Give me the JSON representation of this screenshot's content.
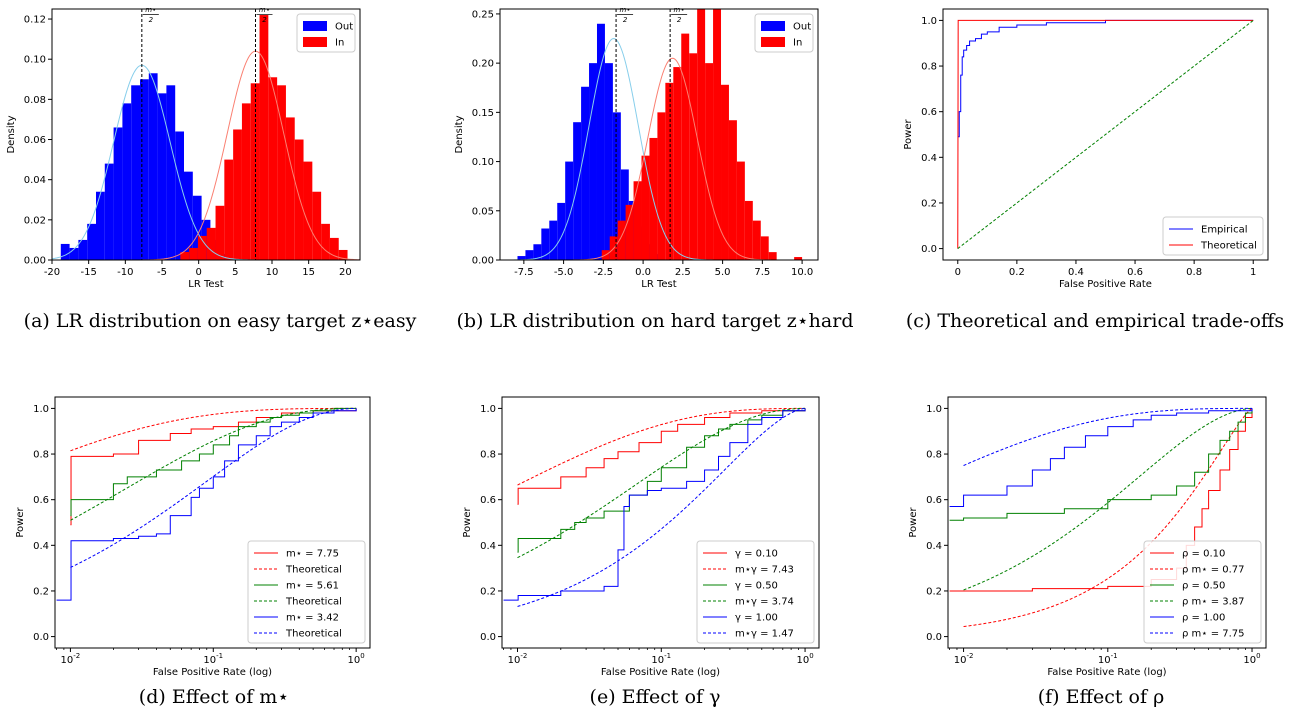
{
  "captions": [
    "(a) LR distribution on easy target z⋆easy",
    "(b) LR distribution on hard target z⋆hard",
    "(c) Theoretical and empirical trade-offs",
    "(d) Effect of m⋆",
    "(e) Effect of γ",
    "(f) Effect of ρ"
  ],
  "chart_data": [
    {
      "id": "a",
      "type": "bar",
      "subtype": "histogram-with-density",
      "xlabel": "LR Test",
      "ylabel": "Density",
      "xlim": [
        -20,
        22
      ],
      "ylim": [
        0,
        0.125
      ],
      "xticks": [
        -20,
        -15,
        -10,
        -5,
        0,
        5,
        10,
        15,
        20
      ],
      "yticks": [
        0.0,
        0.02,
        0.04,
        0.06,
        0.08,
        0.1,
        0.12
      ],
      "ytick_decimals": 2,
      "legend": {
        "position": "top-right",
        "entries": [
          "Out",
          "In"
        ]
      },
      "annotations": [
        {
          "x": -7.75,
          "label": "m⋆/2",
          "side": "right"
        },
        {
          "x": 7.75,
          "label": "m⋆/2",
          "side": "right"
        }
      ],
      "series": [
        {
          "name": "Out",
          "color": "#0000ff",
          "kde_color": "#87ceeb",
          "mean": -7.75,
          "sd": 3.85,
          "kde_peak": 0.097,
          "bin_start": -18.8,
          "bin_width": 1.2,
          "values": [
            0.008,
            0.006,
            0.01,
            0.018,
            0.034,
            0.048,
            0.066,
            0.078,
            0.087,
            0.09,
            0.093,
            0.083,
            0.087,
            0.064,
            0.044,
            0.032,
            0.02,
            0.01,
            0.003
          ]
        },
        {
          "name": "In",
          "color": "#ff0000",
          "kde_color": "#fa8072",
          "mean": 7.75,
          "sd": 3.85,
          "kde_peak": 0.104,
          "bin_start": -2.5,
          "bin_width": 1.2,
          "values": [
            0.004,
            0.006,
            0.012,
            0.016,
            0.027,
            0.05,
            0.065,
            0.078,
            0.088,
            0.122,
            0.091,
            0.087,
            0.071,
            0.06,
            0.049,
            0.034,
            0.018,
            0.011,
            0.005
          ]
        }
      ]
    },
    {
      "id": "b",
      "type": "bar",
      "subtype": "histogram-with-density",
      "xlabel": "LR Test",
      "ylabel": "Density",
      "xlim": [
        -9,
        11
      ],
      "ylim": [
        0,
        0.255
      ],
      "xticks": [
        -7.5,
        -5.0,
        -2.5,
        0.0,
        2.5,
        5.0,
        7.5,
        10.0
      ],
      "yticks": [
        0.0,
        0.05,
        0.1,
        0.15,
        0.2,
        0.25
      ],
      "ytick_decimals": 2,
      "xtick_decimals": 1,
      "legend": {
        "position": "top-right",
        "entries": [
          "Out",
          "In"
        ]
      },
      "annotations": [
        {
          "x": -1.7,
          "label": "m⋆/2",
          "side": "right"
        },
        {
          "x": 1.7,
          "label": "m⋆/2",
          "side": "right"
        }
      ],
      "series": [
        {
          "name": "Out",
          "color": "#0000ff",
          "kde_color": "#87ceeb",
          "mean": -1.85,
          "sd": 1.55,
          "kde_peak": 0.225,
          "bin_start": -7.9,
          "bin_width": 0.5,
          "values": [
            0.004,
            0.01,
            0.016,
            0.032,
            0.04,
            0.058,
            0.1,
            0.14,
            0.176,
            0.2,
            0.24,
            0.2,
            0.15,
            0.092,
            0.06,
            0.034,
            0.016,
            0.006
          ]
        },
        {
          "name": "In",
          "color": "#ff0000",
          "kde_color": "#fa8072",
          "mean": 1.85,
          "sd": 1.55,
          "kde_peak": 0.205,
          "bin_start": -2.6,
          "bin_width": 0.5,
          "values": [
            0.01,
            0.024,
            0.04,
            0.056,
            0.08,
            0.106,
            0.124,
            0.15,
            0.18,
            0.196,
            0.23,
            0.21,
            0.29,
            0.2,
            0.32,
            0.178,
            0.142,
            0.1,
            0.06,
            0.04,
            0.024,
            0.008
          ]
        },
        {
          "name": "In",
          "color": "#ff0000",
          "outlier": true,
          "bin_start": 9.5,
          "bin_width": 0.5,
          "values": [
            0.003
          ]
        }
      ]
    },
    {
      "id": "c",
      "type": "line",
      "xlabel": "False Positive Rate",
      "ylabel": "Power",
      "xlim": [
        -0.05,
        1.05
      ],
      "ylim": [
        -0.05,
        1.05
      ],
      "xticks": [
        0.0,
        0.2,
        0.4,
        0.6,
        0.8,
        1.0
      ],
      "yticks": [
        0.0,
        0.2,
        0.4,
        0.6,
        0.8,
        1.0
      ],
      "legend": {
        "position": "bottom-right",
        "entries": [
          "Empirical",
          "Theoretical"
        ]
      },
      "series": [
        {
          "name": "Empirical",
          "color": "#0000ff",
          "style": "step",
          "x": [
            0.0,
            0.005,
            0.01,
            0.015,
            0.02,
            0.03,
            0.04,
            0.06,
            0.08,
            0.1,
            0.14,
            0.2,
            0.3,
            0.5,
            1.0
          ],
          "y": [
            0.49,
            0.6,
            0.76,
            0.84,
            0.87,
            0.89,
            0.91,
            0.92,
            0.94,
            0.95,
            0.97,
            0.98,
            0.99,
            1.0,
            1.0
          ]
        },
        {
          "name": "Theoretical",
          "color": "#ff0000",
          "style": "solid",
          "mu": 7.75
        },
        {
          "name": "",
          "color": "#008000",
          "style": "dashed",
          "x": [
            0,
            1
          ],
          "y": [
            0,
            1
          ]
        }
      ]
    },
    {
      "id": "d",
      "type": "line",
      "xscale": "log",
      "xlabel": "False Positive Rate (log)",
      "ylabel": "Power",
      "xlim": [
        0.0078,
        1.25
      ],
      "ylim": [
        -0.05,
        1.05
      ],
      "xticks": [
        0.01,
        0.1,
        1
      ],
      "yticks": [
        0.0,
        0.2,
        0.4,
        0.6,
        0.8,
        1.0
      ],
      "legend": {
        "position": "bottom-right",
        "entries": [
          "m⋆ =  7.75",
          "Theoretical",
          "m⋆ =  5.61",
          "Theoretical",
          "m⋆ =  3.42",
          "Theoretical"
        ]
      },
      "series": [
        {
          "name": "m⋆ =  7.75",
          "color": "#ff0000",
          "style": "step",
          "x": [
            0.01,
            0.0101,
            0.02,
            0.03,
            0.05,
            0.07,
            0.1,
            0.15,
            0.2,
            0.3,
            0.5,
            1.0
          ],
          "y": [
            0.49,
            0.79,
            0.8,
            0.86,
            0.89,
            0.91,
            0.92,
            0.94,
            0.96,
            0.98,
            0.99,
            1.0
          ]
        },
        {
          "name": "Theoretical",
          "color": "#ff0000",
          "style": "dashed",
          "mu": 3.22
        },
        {
          "name": "m⋆ =  5.61",
          "color": "#008000",
          "style": "step",
          "x": [
            0.01,
            0.0101,
            0.02,
            0.025,
            0.04,
            0.06,
            0.08,
            0.1,
            0.13,
            0.15,
            0.2,
            0.25,
            0.3,
            0.4,
            0.5,
            0.7,
            1.0
          ],
          "y": [
            0.53,
            0.6,
            0.67,
            0.7,
            0.73,
            0.77,
            0.8,
            0.84,
            0.88,
            0.92,
            0.94,
            0.96,
            0.97,
            0.98,
            0.99,
            1.0,
            1.0
          ]
        },
        {
          "name": "Theoretical",
          "color": "#008000",
          "style": "dashed",
          "mu": 2.35
        },
        {
          "name": "m⋆ =  3.42",
          "color": "#0000ff",
          "style": "step",
          "x": [
            0.008,
            0.0101,
            0.02,
            0.03,
            0.04,
            0.05,
            0.07,
            0.08,
            0.1,
            0.12,
            0.15,
            0.2,
            0.25,
            0.3,
            0.4,
            0.5,
            0.7,
            1.0
          ],
          "y": [
            0.16,
            0.42,
            0.43,
            0.44,
            0.45,
            0.53,
            0.61,
            0.65,
            0.7,
            0.77,
            0.84,
            0.88,
            0.92,
            0.94,
            0.96,
            0.98,
            0.99,
            1.0
          ]
        },
        {
          "name": "Theoretical",
          "color": "#0000ff",
          "style": "dashed",
          "mu": 1.81
        }
      ]
    },
    {
      "id": "e",
      "type": "line",
      "xscale": "log",
      "xlabel": "False Positive Rate (log)",
      "ylabel": "Power",
      "xlim": [
        0.0078,
        1.25
      ],
      "ylim": [
        -0.05,
        1.05
      ],
      "xticks": [
        0.01,
        0.1,
        1
      ],
      "yticks": [
        0.0,
        0.2,
        0.4,
        0.6,
        0.8,
        1.0
      ],
      "legend": {
        "position": "bottom-right",
        "entries": [
          "γ =  0.10",
          "m⋆γ =  7.43",
          "γ =  0.50",
          "m⋆γ =  3.74",
          "γ =  1.00",
          "m⋆γ =  1.47"
        ]
      },
      "series": [
        {
          "name": "γ =  0.10",
          "color": "#ff0000",
          "style": "step",
          "x": [
            0.01,
            0.0101,
            0.02,
            0.03,
            0.04,
            0.05,
            0.07,
            0.1,
            0.13,
            0.2,
            0.3,
            0.5,
            1.0
          ],
          "y": [
            0.58,
            0.65,
            0.7,
            0.74,
            0.78,
            0.81,
            0.85,
            0.9,
            0.93,
            0.96,
            0.98,
            0.99,
            1.0
          ]
        },
        {
          "name": "m⋆γ =  7.43",
          "color": "#ff0000",
          "style": "dashed",
          "mu": 2.75
        },
        {
          "name": "γ =  0.50",
          "color": "#008000",
          "style": "step",
          "x": [
            0.01,
            0.0101,
            0.02,
            0.025,
            0.03,
            0.04,
            0.06,
            0.08,
            0.1,
            0.15,
            0.2,
            0.25,
            0.3,
            0.4,
            0.5,
            0.7,
            1.0
          ],
          "y": [
            0.37,
            0.43,
            0.47,
            0.5,
            0.52,
            0.55,
            0.62,
            0.68,
            0.74,
            0.83,
            0.88,
            0.91,
            0.93,
            0.95,
            0.97,
            0.99,
            1.0
          ]
        },
        {
          "name": "m⋆γ =  3.74",
          "color": "#008000",
          "style": "dashed",
          "mu": 1.93
        },
        {
          "name": "γ =  1.00",
          "color": "#0000ff",
          "style": "step",
          "x": [
            0.008,
            0.0101,
            0.02,
            0.04,
            0.05,
            0.055,
            0.06,
            0.08,
            0.1,
            0.15,
            0.2,
            0.25,
            0.3,
            0.4,
            0.5,
            0.7,
            1.0
          ],
          "y": [
            0.16,
            0.18,
            0.2,
            0.22,
            0.38,
            0.57,
            0.62,
            0.64,
            0.65,
            0.68,
            0.73,
            0.79,
            0.85,
            0.93,
            0.96,
            0.99,
            1.0
          ]
        },
        {
          "name": "m⋆γ =  1.47",
          "color": "#0000ff",
          "style": "dashed",
          "mu": 1.21
        }
      ]
    },
    {
      "id": "f",
      "type": "line",
      "xscale": "log",
      "xlabel": "False Positive Rate (log)",
      "ylabel": "Power",
      "xlim": [
        0.0078,
        1.25
      ],
      "ylim": [
        -0.05,
        1.05
      ],
      "xticks": [
        0.01,
        0.1,
        1
      ],
      "yticks": [
        0.0,
        0.2,
        0.4,
        0.6,
        0.8,
        1.0
      ],
      "legend": {
        "position": "bottom-right",
        "entries": [
          "ρ =  0.10",
          "ρ m⋆ =  0.77",
          "ρ =  0.50",
          "ρ m⋆ =  3.87",
          "ρ =  1.00",
          "ρ m⋆ =  7.75"
        ]
      },
      "series": [
        {
          "name": "ρ =  0.10",
          "color": "#ff0000",
          "style": "step",
          "x": [
            0.008,
            0.03,
            0.1,
            0.2,
            0.3,
            0.35,
            0.4,
            0.45,
            0.5,
            0.6,
            0.7,
            0.8,
            0.9,
            1.0
          ],
          "y": [
            0.2,
            0.21,
            0.22,
            0.25,
            0.3,
            0.4,
            0.48,
            0.56,
            0.64,
            0.73,
            0.82,
            0.9,
            0.96,
            1.0
          ]
        },
        {
          "name": "ρ m⋆ =  0.77",
          "color": "#ff0000",
          "style": "dashed",
          "mu": 0.62
        },
        {
          "name": "ρ =  0.50",
          "color": "#008000",
          "style": "step",
          "x": [
            0.008,
            0.01,
            0.02,
            0.05,
            0.1,
            0.2,
            0.3,
            0.4,
            0.5,
            0.6,
            0.7,
            0.8,
            0.9,
            1.0
          ],
          "y": [
            0.51,
            0.52,
            0.54,
            0.56,
            0.6,
            0.62,
            0.66,
            0.72,
            0.8,
            0.86,
            0.9,
            0.94,
            0.98,
            1.0
          ]
        },
        {
          "name": "ρ m⋆ =  3.87",
          "color": "#008000",
          "style": "dashed",
          "mu": 1.5
        },
        {
          "name": "ρ =  1.00",
          "color": "#0000ff",
          "style": "step",
          "x": [
            0.008,
            0.01,
            0.02,
            0.03,
            0.04,
            0.05,
            0.07,
            0.1,
            0.15,
            0.2,
            0.3,
            0.5,
            1.0
          ],
          "y": [
            0.57,
            0.62,
            0.66,
            0.73,
            0.78,
            0.83,
            0.88,
            0.92,
            0.95,
            0.97,
            0.98,
            0.99,
            1.0
          ]
        },
        {
          "name": "ρ m⋆ =  7.75",
          "color": "#0000ff",
          "style": "dashed",
          "mu": 3.0
        }
      ]
    }
  ]
}
